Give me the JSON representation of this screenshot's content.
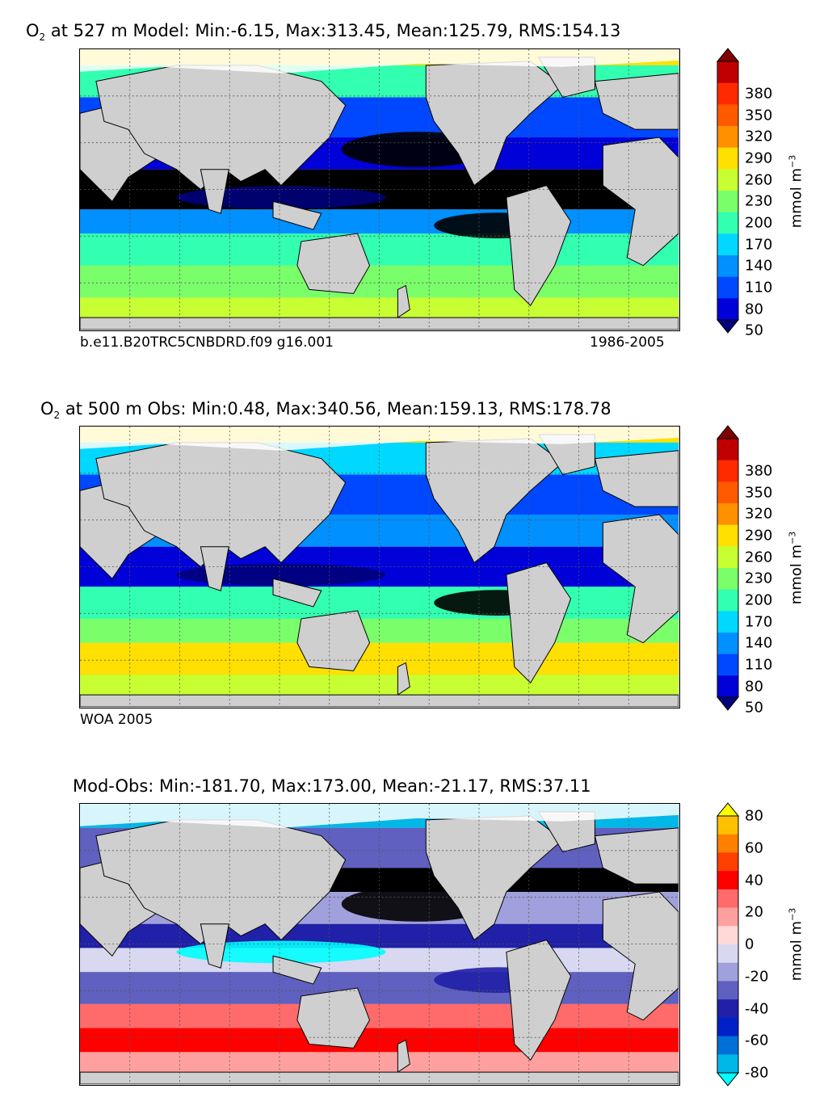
{
  "panels": [
    {
      "id": "model",
      "title_prefix": "O",
      "title_subscript": "2",
      "title_rest": " at 527 m Model: Min:-6.15, Max:313.45, Mean:125.79, RMS:154.13",
      "caption_left": "b.e11.B20TRC5CNBDRD.f09 g16.001",
      "caption_right": "1986-2005",
      "colorbar": {
        "labels": [
          "380",
          "350",
          "320",
          "290",
          "260",
          "230",
          "200",
          "170",
          "140",
          "110",
          "80",
          "50"
        ],
        "unit": "mmol m",
        "unit_exp": "−3",
        "colors": [
          "#7f0000",
          "#c00000",
          "#ff2a00",
          "#ff5a00",
          "#ff9000",
          "#ffe000",
          "#c8ff32",
          "#7aff6a",
          "#32ffb0",
          "#00d8ff",
          "#0090ff",
          "#0048ff",
          "#0000d8",
          "#00007a"
        ]
      }
    },
    {
      "id": "obs",
      "title_prefix": "O",
      "title_subscript": "2",
      "title_rest": " at 500 m Obs: Min:0.48, Max:340.56, Mean:159.13, RMS:178.78",
      "caption_left": "WOA 2005",
      "caption_right": "",
      "colorbar": {
        "labels": [
          "380",
          "350",
          "320",
          "290",
          "260",
          "230",
          "200",
          "170",
          "140",
          "110",
          "80",
          "50"
        ],
        "unit": "mmol m",
        "unit_exp": "−3",
        "colors": [
          "#7f0000",
          "#c00000",
          "#ff2a00",
          "#ff5a00",
          "#ff9000",
          "#ffe000",
          "#c8ff32",
          "#7aff6a",
          "#32ffb0",
          "#00d8ff",
          "#0090ff",
          "#0048ff",
          "#0000d8",
          "#00007a"
        ]
      }
    },
    {
      "id": "diff",
      "title_prefix": "",
      "title_subscript": "",
      "title_rest": "Mod-Obs: Min:-181.70, Max:173.00, Mean:-21.17, RMS:37.11",
      "caption_left": "",
      "caption_right": "",
      "colorbar": {
        "labels": [
          "80",
          "60",
          "40",
          "20",
          "0",
          "-20",
          "-40",
          "-60",
          "-80"
        ],
        "unit": "mmol m",
        "unit_exp": "−3",
        "colors": [
          "#ffff00",
          "#ffc000",
          "#ff8000",
          "#ff4000",
          "#ff0000",
          "#ff6a6a",
          "#ffa0a0",
          "#ffd8d8",
          "#d8d8f0",
          "#a0a0dc",
          "#6060c0",
          "#2020a8",
          "#0020c8",
          "#0070d8",
          "#00b8e8",
          "#00ffff"
        ]
      }
    }
  ],
  "map_colors": {
    "land": "#cfcfcf",
    "missing": "#ffffff",
    "model_bands": [
      "#000000",
      "#00007a",
      "#0000d8",
      "#0048ff",
      "#0090ff",
      "#00d8ff",
      "#32ffb0",
      "#7aff6a",
      "#c8ff32",
      "#ffe000"
    ],
    "diff_bands": [
      "#000000",
      "#00ffff",
      "#00b8e8",
      "#2020a8",
      "#6060c0",
      "#a0a0dc",
      "#d8d8f0",
      "#ffd8d8",
      "#ffa0a0",
      "#ff6a6a",
      "#ff0000"
    ]
  }
}
